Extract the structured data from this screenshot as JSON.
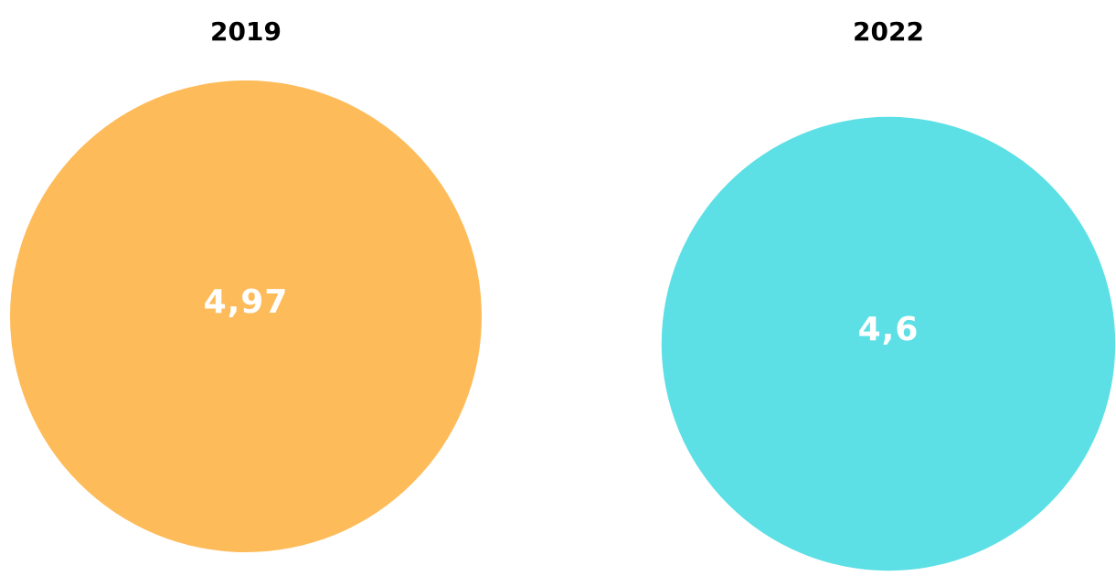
{
  "chart_data": {
    "type": "bubble",
    "categories": [
      "2019",
      "2022"
    ],
    "values": [
      4.97,
      4.6
    ],
    "value_labels": [
      "4,97",
      "4,6"
    ],
    "colors": [
      "#FEBB59",
      "#5CE0E5"
    ],
    "label_color": "#FFFFFF"
  }
}
